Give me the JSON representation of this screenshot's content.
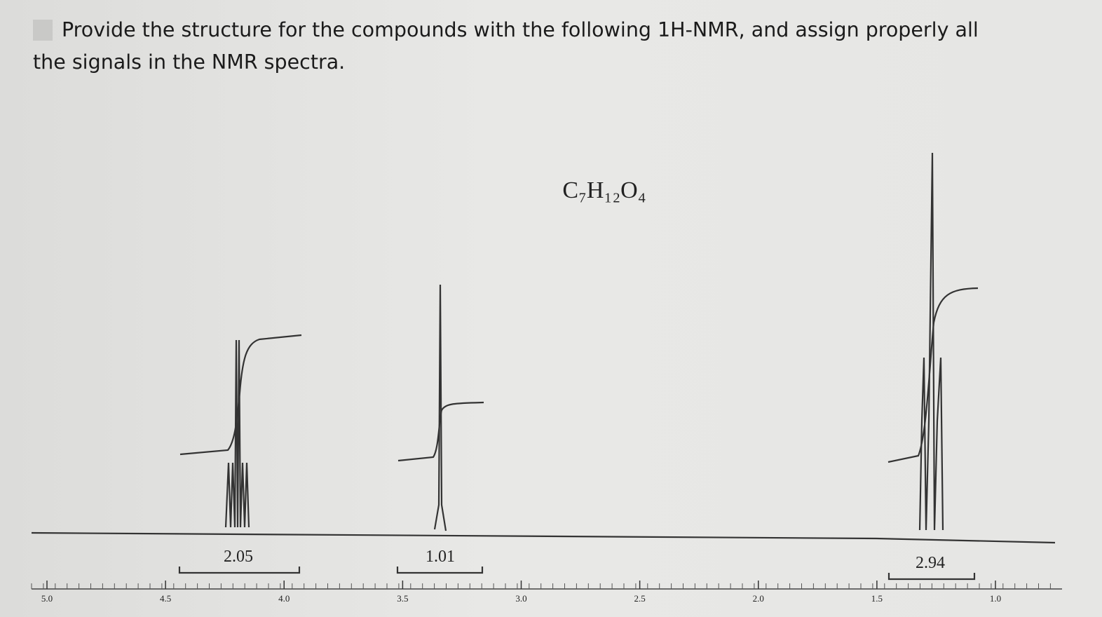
{
  "question": {
    "lines": [
      "Provide the structure for the compounds with the following 1H-NMR, and assign properly all",
      "the signals in the NMR spectra."
    ]
  },
  "spectrum": {
    "formula": "C₇H₁₂O₄",
    "xticks": [
      {
        "value": 5,
        "label": "5.0"
      },
      {
        "value": 4.5,
        "label": "4.5"
      },
      {
        "value": 4,
        "label": "4.0"
      },
      {
        "value": 3.5,
        "label": "3.5"
      },
      {
        "value": 3,
        "label": "3.0"
      },
      {
        "value": 2.5,
        "label": "2.5"
      },
      {
        "value": 2,
        "label": "2.0"
      },
      {
        "value": 1.5,
        "label": "1.5"
      },
      {
        "value": 1,
        "label": "1.0"
      }
    ],
    "integrations": [
      {
        "label": "2.05"
      },
      {
        "label": "1.01"
      },
      {
        "label": "2.94"
      }
    ]
  }
}
